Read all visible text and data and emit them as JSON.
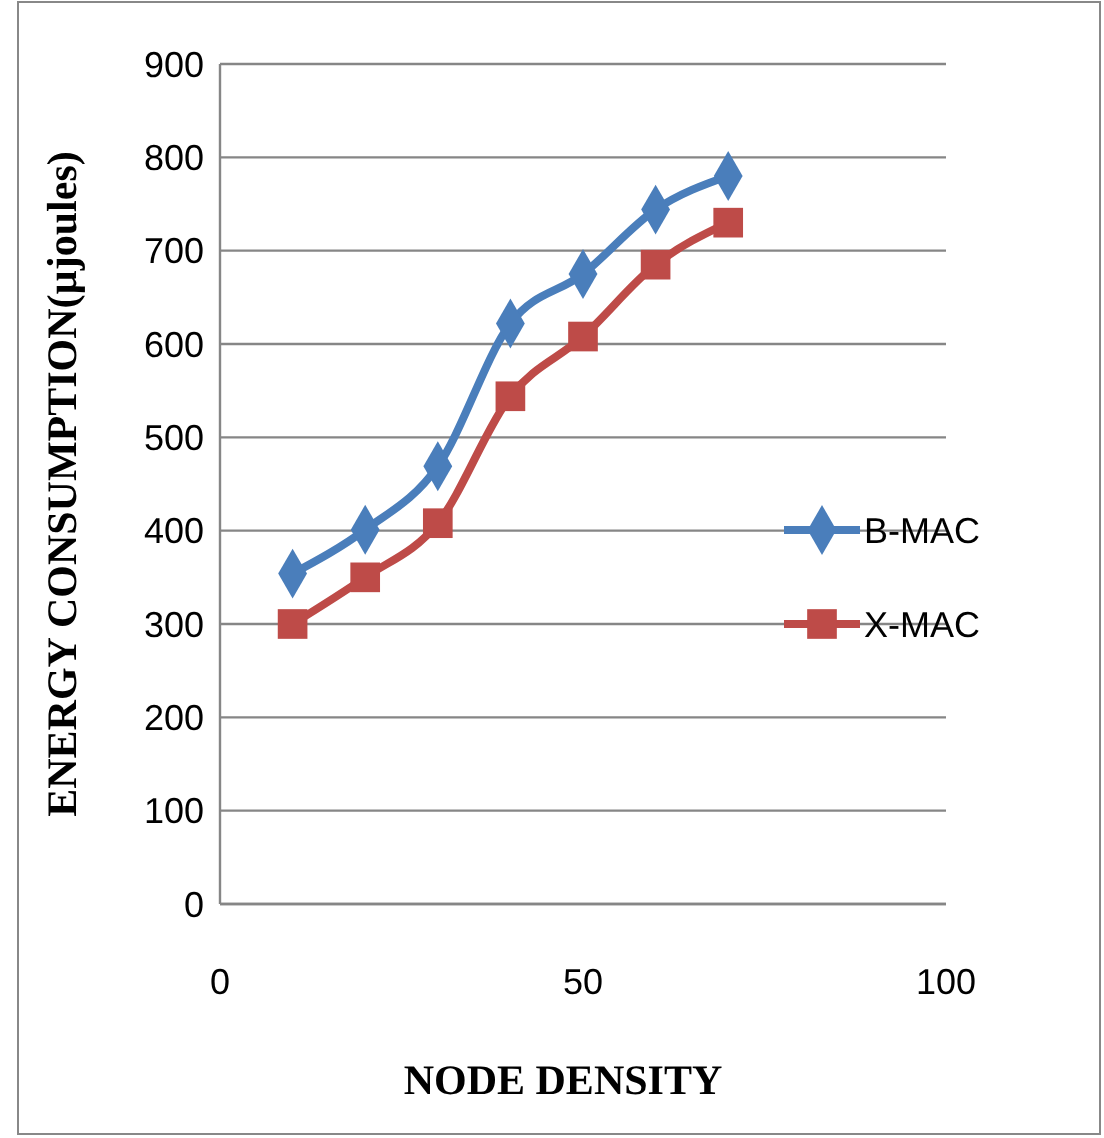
{
  "chart_data": {
    "type": "line",
    "xlabel": "NODE DENSITY",
    "ylabel": "ENERGY CONSUMPTION(µjoules)",
    "x": [
      10,
      20,
      30,
      40,
      50,
      60,
      70
    ],
    "xlim": [
      0,
      100
    ],
    "xticks": [
      0,
      50,
      100
    ],
    "ylim": [
      0,
      900
    ],
    "yticks": [
      0,
      100,
      200,
      300,
      400,
      500,
      600,
      700,
      800,
      900
    ],
    "grid": "y",
    "legend": "right",
    "series": [
      {
        "name": "B-MAC",
        "color": "#4a7ebb",
        "marker": "diamond",
        "values": [
          354,
          401,
          469,
          622,
          675,
          744,
          780
        ]
      },
      {
        "name": "X-MAC",
        "color": "#be4b48",
        "marker": "square",
        "values": [
          300,
          350,
          408,
          544,
          608,
          685,
          730
        ]
      }
    ]
  }
}
